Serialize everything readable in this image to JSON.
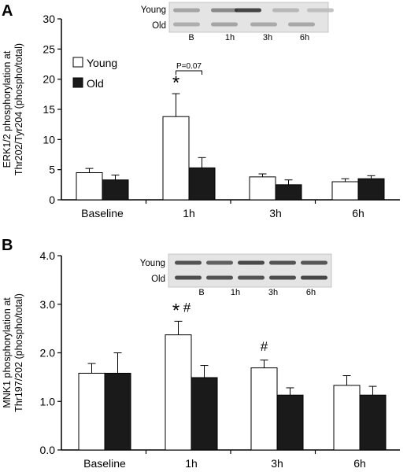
{
  "panels": [
    {
      "letter": "A",
      "ylabel_lines": [
        "ERK1/2 phosphorylation at",
        "Thr202/Tyr204 (phospho/total)"
      ],
      "blot": {
        "rows": [
          "Young",
          "Old"
        ],
        "lanes": [
          "B",
          "1h",
          "3h",
          "6h"
        ]
      },
      "legend": {
        "entries": [
          "Young",
          "Old"
        ],
        "placement": "top-left"
      },
      "annotations": [
        {
          "text": "P=0.07",
          "type": "bracket",
          "category": "1h"
        },
        {
          "text": "*",
          "category": "1h",
          "series": "Young"
        }
      ]
    },
    {
      "letter": "B",
      "ylabel_lines": [
        "MNK1 phosphorylation at",
        "Thr197/202 (phospho/total)"
      ],
      "blot": {
        "rows": [
          "Young",
          "Old"
        ],
        "lanes": [
          "B",
          "1h",
          "3h",
          "6h"
        ]
      },
      "legend": null,
      "annotations": [
        {
          "text": "*",
          "category": "1h",
          "series": "Young"
        },
        {
          "text": "#",
          "category": "1h",
          "series": "Young"
        },
        {
          "text": "#",
          "category": "3h",
          "series": "Young"
        }
      ]
    }
  ],
  "chart_data": [
    {
      "type": "bar",
      "title": "",
      "xlabel": "",
      "ylabel": "ERK1/2 phosphorylation at Thr202/Tyr204 (phospho/total)",
      "categories": [
        "Baseline",
        "1h",
        "3h",
        "6h"
      ],
      "series": [
        {
          "name": "Young",
          "color": "#ffffff",
          "values": [
            4.5,
            13.8,
            3.8,
            3.0
          ],
          "errors": [
            0.7,
            3.8,
            0.5,
            0.5
          ]
        },
        {
          "name": "Old",
          "color": "#1a1a1a",
          "values": [
            3.3,
            5.3,
            2.5,
            3.5
          ],
          "errors": [
            0.8,
            1.7,
            0.8,
            0.5
          ]
        }
      ],
      "ylim": [
        0,
        30
      ],
      "yticks": [
        0,
        5,
        10,
        15,
        20,
        25,
        30
      ],
      "ytick_labels": [
        "0",
        "5",
        "10",
        "15",
        "20",
        "25",
        "30"
      ],
      "grid": false
    },
    {
      "type": "bar",
      "title": "",
      "xlabel": "",
      "ylabel": "MNK1 phosphorylation at Thr197/202 (phospho/total)",
      "categories": [
        "Baseline",
        "1h",
        "3h",
        "6h"
      ],
      "series": [
        {
          "name": "Young",
          "color": "#ffffff",
          "values": [
            1.58,
            2.37,
            1.69,
            1.33
          ],
          "errors": [
            0.2,
            0.28,
            0.16,
            0.2
          ]
        },
        {
          "name": "Old",
          "color": "#1a1a1a",
          "values": [
            1.58,
            1.49,
            1.13,
            1.13
          ],
          "errors": [
            0.42,
            0.25,
            0.15,
            0.18
          ]
        }
      ],
      "ylim": [
        0,
        4
      ],
      "yticks": [
        0,
        1,
        2,
        3,
        4
      ],
      "ytick_labels": [
        "0.0",
        "1.0",
        "2.0",
        "3.0",
        "4.0"
      ],
      "grid": false
    }
  ]
}
